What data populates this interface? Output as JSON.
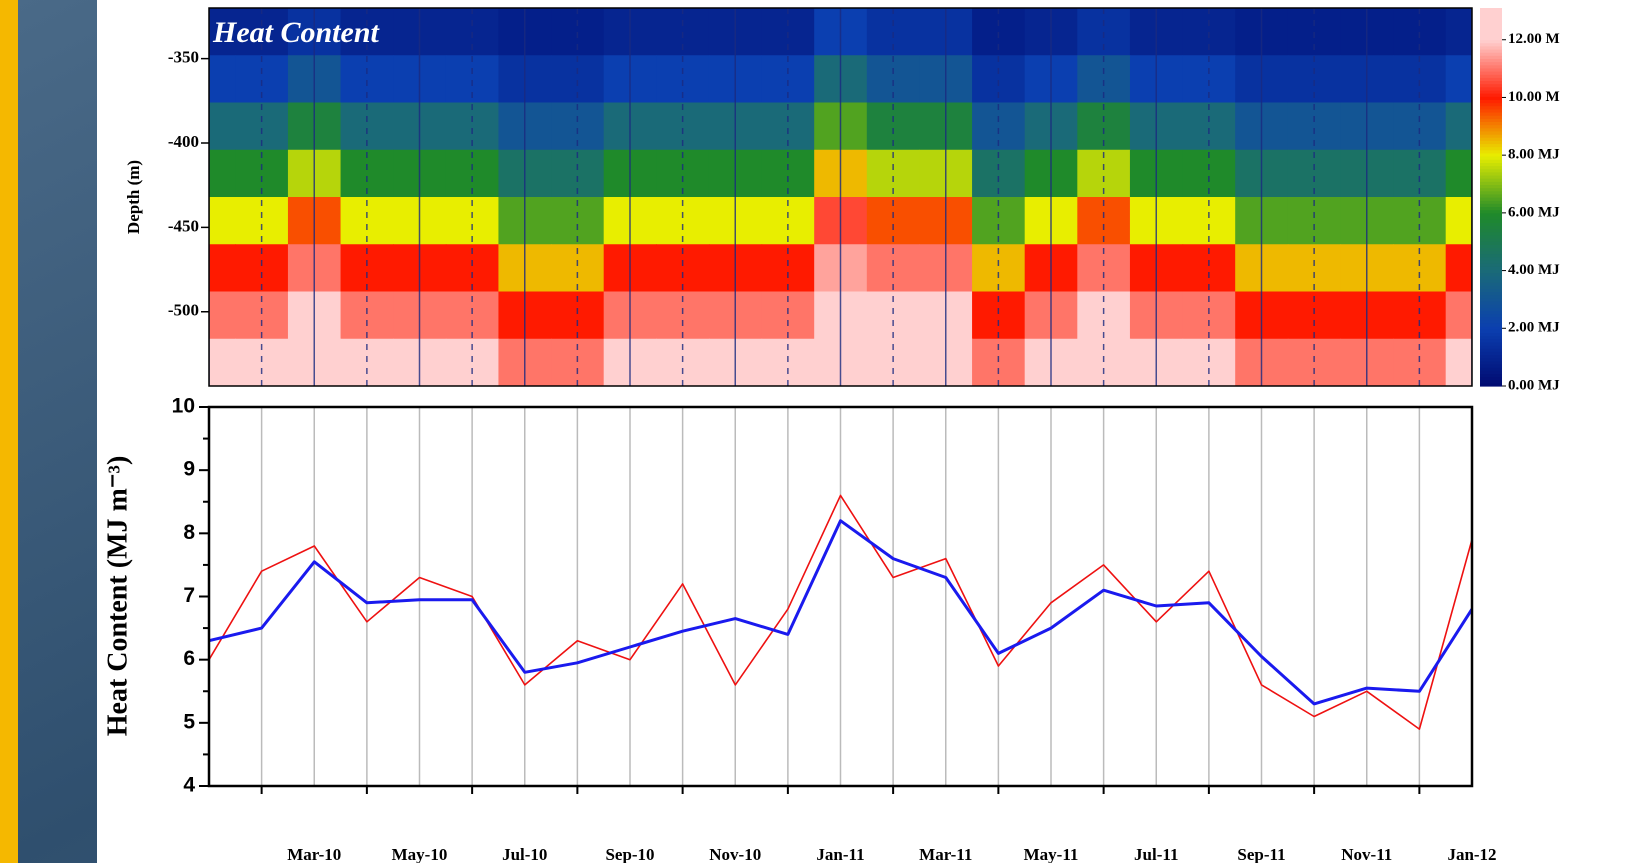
{
  "chart_data": [
    {
      "type": "heatmap",
      "title": "Heat Content",
      "ylabel": "Depth (m)",
      "x": [
        "2010-02",
        "2010-03",
        "2010-04",
        "2010-05",
        "2010-06",
        "2010-07",
        "2010-08",
        "2010-09",
        "2010-10",
        "2010-11",
        "2010-12",
        "2011-01",
        "2011-02",
        "2011-03",
        "2011-04",
        "2011-05",
        "2011-06",
        "2011-07",
        "2011-08",
        "2011-09",
        "2011-10",
        "2011-11",
        "2011-12",
        "2012-01",
        "2012-02"
      ],
      "xlim": [
        "2010-02",
        "2012-02"
      ],
      "y": [
        -334,
        -362,
        -390,
        -418,
        -446,
        -474,
        -502,
        -530
      ],
      "ylim": [
        -320,
        -544
      ],
      "yticks": [
        -350,
        -400,
        -450,
        -500
      ],
      "values": [
        [
          1,
          1,
          1.5,
          1,
          1,
          1,
          0.8,
          0.8,
          1,
          1,
          1,
          1,
          2,
          1.5,
          1.5,
          0.8,
          1,
          1.5,
          1,
          1,
          0.8,
          0.8,
          0.8,
          0.8,
          1
        ],
        [
          2,
          2,
          3,
          2,
          2,
          2,
          1.5,
          1.5,
          2,
          2,
          2,
          2,
          4,
          3,
          3,
          1.5,
          2,
          3,
          2,
          2,
          1.5,
          1.5,
          1.5,
          1.5,
          2
        ],
        [
          4,
          4,
          5.5,
          4,
          4,
          4,
          3,
          3,
          4,
          4,
          4,
          4,
          6.5,
          5.5,
          5.5,
          3,
          4,
          5.5,
          4,
          4,
          3,
          3,
          3,
          3,
          4
        ],
        [
          6,
          6,
          7.5,
          6,
          6,
          6,
          4.5,
          4.5,
          6,
          6,
          6,
          6,
          8.5,
          7.5,
          7.5,
          4.5,
          6,
          7.5,
          6,
          6,
          4.5,
          4.5,
          4.5,
          4.5,
          6
        ],
        [
          8,
          8,
          9.5,
          8,
          8,
          8,
          6.5,
          6.5,
          8,
          8,
          8,
          8,
          10.5,
          9.5,
          9.5,
          6.5,
          8,
          9.5,
          8,
          8,
          6.5,
          6.5,
          6.5,
          6.5,
          8
        ],
        [
          10,
          10,
          11,
          10,
          10,
          10,
          8.5,
          8.5,
          10,
          10,
          10,
          10,
          11.5,
          11,
          11,
          8.5,
          10,
          11,
          10,
          10,
          8.5,
          8.5,
          8.5,
          8.5,
          10
        ],
        [
          11,
          11,
          12,
          11,
          11,
          11,
          10,
          10,
          11,
          11,
          11,
          11,
          12.5,
          12,
          12,
          10,
          11,
          12,
          11,
          11,
          10,
          10,
          10,
          10,
          11
        ],
        [
          12,
          12,
          12.5,
          12,
          12,
          12,
          11,
          11,
          12,
          12,
          12,
          12,
          13,
          12.5,
          12.5,
          11,
          12,
          12.5,
          12,
          12,
          11,
          11,
          11,
          11,
          12
        ]
      ],
      "colorbar_ticks": [
        {
          "value": 0,
          "label": "0.00 MJ"
        },
        {
          "value": 2,
          "label": "2.00 MJ"
        },
        {
          "value": 4,
          "label": "4.00 MJ"
        },
        {
          "value": 6,
          "label": "6.00 MJ"
        },
        {
          "value": 8,
          "label": "8.00 MJ"
        },
        {
          "value": 10,
          "label": "10.00 M"
        },
        {
          "value": 12,
          "label": "12.00 M"
        }
      ],
      "colorbar_lim": [
        0,
        13.1
      ],
      "colorbar_colors": [
        "#000a70",
        "#0b3fb0",
        "#1a6a78",
        "#1f8a2a",
        "#e8ee00",
        "#ff1a00",
        "#ffd0d0"
      ],
      "grid": true
    },
    {
      "type": "line",
      "ylabel": "Heat Content (MJ m⁻³)",
      "x": [
        "2010-02",
        "2010-03",
        "2010-04",
        "2010-05",
        "2010-06",
        "2010-07",
        "2010-08",
        "2010-09",
        "2010-10",
        "2010-11",
        "2010-12",
        "2011-01",
        "2011-02",
        "2011-03",
        "2011-04",
        "2011-05",
        "2011-06",
        "2011-07",
        "2011-08",
        "2011-09",
        "2011-10",
        "2011-11",
        "2011-12",
        "2012-01",
        "2012-02"
      ],
      "xlim": [
        "2010-02",
        "2012-02"
      ],
      "xticks": [
        {
          "value": "2010-03",
          "label": "Mar-10"
        },
        {
          "value": "2010-05",
          "label": "May-10"
        },
        {
          "value": "2010-07",
          "label": "Jul-10"
        },
        {
          "value": "2010-09",
          "label": "Sep-10"
        },
        {
          "value": "2010-11",
          "label": "Nov-10"
        },
        {
          "value": "2011-01",
          "label": "Jan-11"
        },
        {
          "value": "2011-03",
          "label": "Mar-11"
        },
        {
          "value": "2011-05",
          "label": "May-11"
        },
        {
          "value": "2011-07",
          "label": "Jul-11"
        },
        {
          "value": "2011-09",
          "label": "Sep-11"
        },
        {
          "value": "2011-11",
          "label": "Nov-11"
        },
        {
          "value": "2012-01",
          "label": "Jan-12"
        }
      ],
      "ylim": [
        4,
        10
      ],
      "yticks": [
        4,
        5,
        6,
        7,
        8,
        9,
        10
      ],
      "grid": true,
      "minor_grid": true,
      "series": [
        {
          "color": "#ee1111",
          "values": [
            6.0,
            7.4,
            7.8,
            6.6,
            7.3,
            7.0,
            5.6,
            6.3,
            6.0,
            7.2,
            5.6,
            6.8,
            8.6,
            7.3,
            7.6,
            5.9,
            6.9,
            7.5,
            6.6,
            7.4,
            5.6,
            5.1,
            5.5,
            4.9,
            7.9
          ]
        },
        {
          "color": "#1a1aee",
          "values": [
            6.3,
            6.5,
            7.55,
            6.9,
            6.95,
            6.95,
            5.8,
            5.95,
            6.2,
            6.45,
            6.65,
            6.4,
            8.2,
            7.6,
            7.3,
            6.1,
            6.5,
            7.1,
            6.85,
            6.9,
            6.05,
            5.3,
            5.55,
            5.5,
            6.8
          ]
        }
      ]
    }
  ]
}
